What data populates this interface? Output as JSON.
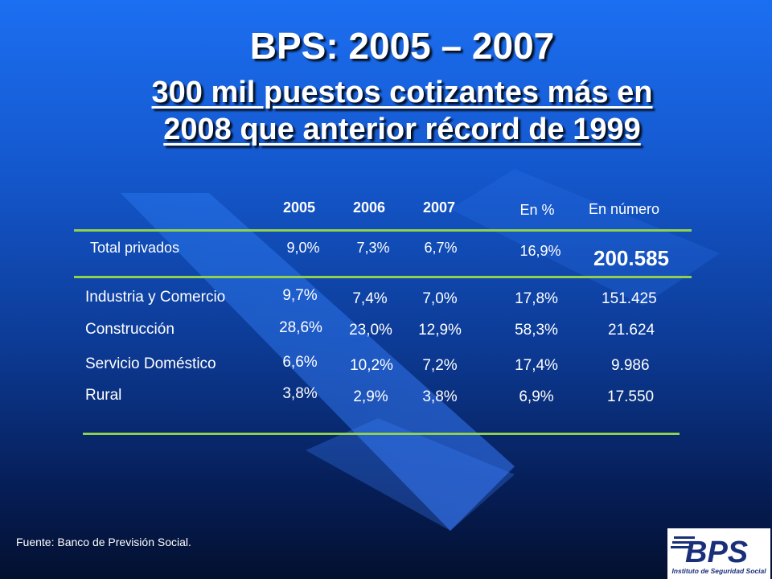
{
  "title": {
    "main": "BPS: 2005 – 2007",
    "sub_line1": "300 mil puestos cotizantes más en",
    "sub_line2": "2008 que anterior récord de 1999"
  },
  "table": {
    "headers": {
      "y2005": "2005",
      "y2006": "2006",
      "y2007": "2007",
      "pct": "En %",
      "num": "En número"
    },
    "total": {
      "label": "Total privados",
      "y2005": "9,0%",
      "y2006": "7,3%",
      "y2007": "6,7%",
      "pct": "16,9%",
      "num": "200.585"
    },
    "rows": [
      {
        "label": "Industria y Comercio",
        "y2005": "9,7%",
        "y2006": "7,4%",
        "y2007": "7,0%",
        "pct": "17,8%",
        "num": "151.425"
      },
      {
        "label": "Construcción",
        "y2005": "28,6%",
        "y2006": "23,0%",
        "y2007": "12,9%",
        "pct": "58,3%",
        "num": "21.624"
      },
      {
        "label": "Servicio Doméstico",
        "y2005": "6,6%",
        "y2006": "10,2%",
        "y2007": "7,2%",
        "pct": "17,4%",
        "num": "9.986"
      },
      {
        "label": "Rural",
        "y2005": "3,8%",
        "y2006": "2,9%",
        "y2007": "3,8%",
        "pct": "6,9%",
        "num": "17.550"
      }
    ]
  },
  "source": "Fuente: Banco de Previsión Social.",
  "logo": {
    "text": "BPS",
    "caption": "Instituto de Seguridad Social"
  },
  "colors": {
    "accent_line": "#8fd14f",
    "logo_blue": "#1a2f7a"
  }
}
